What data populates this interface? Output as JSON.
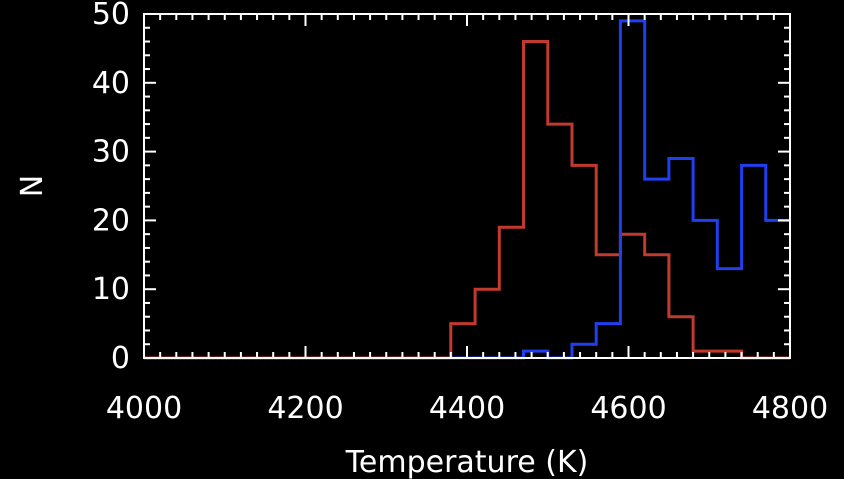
{
  "chart_data": {
    "type": "bar",
    "histogram": true,
    "title": "",
    "xlabel": "Temperature (K)",
    "ylabel": "N",
    "xlim": [
      4000,
      4800
    ],
    "ylim": [
      0,
      50
    ],
    "x_ticks": [
      "4000",
      "4200",
      "4400",
      "4600",
      "4800"
    ],
    "y_ticks": [
      "0",
      "10",
      "20",
      "30",
      "40",
      "50"
    ],
    "bin_width": 30,
    "grid": false,
    "legend": "none",
    "series": [
      {
        "color": "#c23a2e",
        "bins": [
          {
            "x0": 4000,
            "x1": 4380,
            "value": 0
          },
          {
            "x0": 4380,
            "x1": 4410,
            "value": 5
          },
          {
            "x0": 4410,
            "x1": 4440,
            "value": 10
          },
          {
            "x0": 4440,
            "x1": 4470,
            "value": 19
          },
          {
            "x0": 4470,
            "x1": 4500,
            "value": 46
          },
          {
            "x0": 4500,
            "x1": 4530,
            "value": 34
          },
          {
            "x0": 4530,
            "x1": 4560,
            "value": 28
          },
          {
            "x0": 4560,
            "x1": 4590,
            "value": 15
          },
          {
            "x0": 4590,
            "x1": 4620,
            "value": 18
          },
          {
            "x0": 4620,
            "x1": 4650,
            "value": 15
          },
          {
            "x0": 4650,
            "x1": 4680,
            "value": 6
          },
          {
            "x0": 4680,
            "x1": 4740,
            "value": 1
          },
          {
            "x0": 4740,
            "x1": 4800,
            "value": 0
          }
        ]
      },
      {
        "color": "#1f3ff0",
        "bins": [
          {
            "x0": 4380,
            "x1": 4470,
            "value": 0
          },
          {
            "x0": 4470,
            "x1": 4500,
            "value": 1
          },
          {
            "x0": 4500,
            "x1": 4530,
            "value": 0
          },
          {
            "x0": 4530,
            "x1": 4560,
            "value": 2
          },
          {
            "x0": 4560,
            "x1": 4590,
            "value": 5
          },
          {
            "x0": 4590,
            "x1": 4620,
            "value": 49
          },
          {
            "x0": 4620,
            "x1": 4650,
            "value": 26
          },
          {
            "x0": 4650,
            "x1": 4680,
            "value": 29
          },
          {
            "x0": 4680,
            "x1": 4710,
            "value": 20
          },
          {
            "x0": 4710,
            "x1": 4740,
            "value": 13
          },
          {
            "x0": 4740,
            "x1": 4770,
            "value": 28
          },
          {
            "x0": 4770,
            "x1": 4800,
            "value": 20
          }
        ]
      }
    ]
  }
}
